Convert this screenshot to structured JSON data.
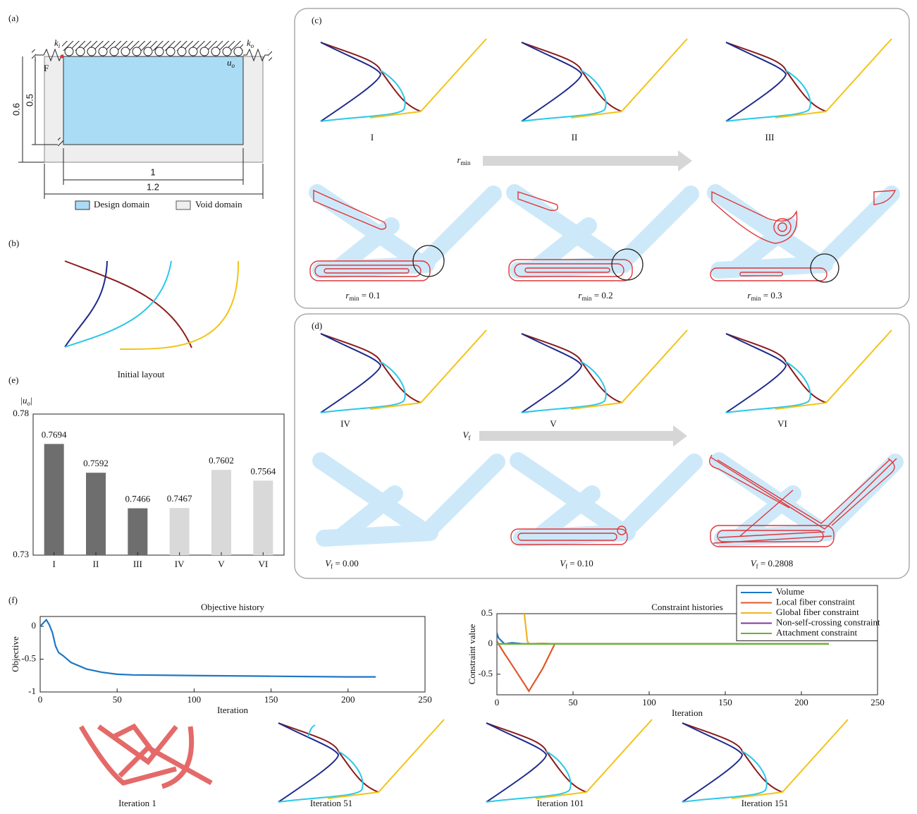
{
  "panel_a": {
    "label": "(a)",
    "force": "F",
    "ki": {
      "base": "k",
      "sub": "i"
    },
    "ko": {
      "base": "k",
      "sub": "o"
    },
    "uo": {
      "base": "u",
      "sub": "o"
    },
    "dims": [
      "0.6",
      "0.5",
      "1",
      "1.2"
    ],
    "legend": [
      "Design domain",
      "Void domain"
    ]
  },
  "panel_b": {
    "label": "(b)",
    "caption": "Initial layout"
  },
  "panel_c": {
    "label": "(c)",
    "captions": [
      "I",
      "II",
      "III"
    ],
    "arrow": {
      "base": "r",
      "sub": "min"
    },
    "settings": [
      {
        "base": "r",
        "sub": "min",
        "rest": " = 0.1"
      },
      {
        "base": "r",
        "sub": "min",
        "rest": " = 0.2"
      },
      {
        "base": "r",
        "sub": "min",
        "rest": " = 0.3"
      }
    ]
  },
  "panel_d": {
    "label": "(d)",
    "captions": [
      "IV",
      "V",
      "VI"
    ],
    "arrow": {
      "base": "V",
      "sub": "f"
    },
    "settings": [
      {
        "base": "V",
        "sub": "f",
        "rest": " = 0.00"
      },
      {
        "base": "V",
        "sub": "f",
        "rest": " = 0.10"
      },
      {
        "base": "V",
        "sub": "f",
        "rest": " = 0.2808"
      }
    ]
  },
  "panel_e": {
    "label": "(e)"
  },
  "panel_f": {
    "label": "(f)",
    "captions": [
      "Iteration 1",
      "Iteration 51",
      "Iteration 101",
      "Iteration 151"
    ]
  },
  "chart_data": [
    {
      "type": "bar",
      "ylabel": {
        "base": "|u",
        "sub": "o",
        "rest": "|"
      },
      "categories": [
        "I",
        "II",
        "III",
        "IV",
        "V",
        "VI"
      ],
      "values": [
        0.7694,
        0.7592,
        0.7466,
        0.7467,
        0.7602,
        0.7564
      ],
      "colors": [
        "#6e6e6e",
        "#6e6e6e",
        "#6e6e6e",
        "#d9d9d9",
        "#d9d9d9",
        "#d9d9d9"
      ],
      "ylim": [
        0.73,
        0.78
      ],
      "yticks": [
        0.73,
        0.78
      ]
    },
    {
      "type": "line",
      "title": "Objective history",
      "xlabel": "Iteration",
      "ylabel": "Objective",
      "x": [
        0,
        2,
        4,
        6,
        8,
        10,
        12,
        15,
        20,
        30,
        40,
        50,
        60,
        100,
        150,
        200,
        218
      ],
      "series": [
        {
          "color": "#1f77c4",
          "values": [
            0,
            0.05,
            0.1,
            0.02,
            -0.1,
            -0.3,
            -0.4,
            -0.45,
            -0.55,
            -0.65,
            -0.7,
            -0.73,
            -0.74,
            -0.75,
            -0.76,
            -0.77,
            -0.77
          ]
        }
      ],
      "xlim": [
        0,
        250
      ],
      "xticks": [
        0,
        50,
        100,
        150,
        200,
        250
      ],
      "ylim": [
        -1,
        0.15
      ],
      "yticks": [
        -1,
        -0.5,
        0
      ]
    },
    {
      "type": "line",
      "title": "Constraint histories",
      "xlabel": "Iteration",
      "ylabel": "Constraint value",
      "legend": "upper right",
      "x": [
        0,
        1,
        5,
        10,
        18,
        20,
        21,
        30,
        38,
        40,
        100,
        150,
        218
      ],
      "series": [
        {
          "name": "Volume",
          "color": "#1f77c4",
          "values": [
            0.18,
            0.1,
            0,
            0.02,
            0,
            0,
            0,
            0,
            0,
            0,
            0,
            0,
            0
          ]
        },
        {
          "name": "Local fiber constraint",
          "color": "#e2572a",
          "values": [
            0.05,
            0,
            -0.16,
            -0.35,
            -0.66,
            -0.74,
            -0.78,
            -0.41,
            0,
            0,
            0,
            0,
            0
          ]
        },
        {
          "name": "Global fiber constraint",
          "color": "#f0b323",
          "values": [
            null,
            null,
            null,
            null,
            0.5,
            0.05,
            0,
            0.01,
            0,
            0,
            0,
            0,
            0
          ]
        },
        {
          "name": "Non-self-crossing constraint",
          "color": "#7e3a97",
          "values": [
            0,
            0,
            0,
            0,
            0,
            0,
            0,
            0,
            0,
            0,
            0,
            0,
            0
          ]
        },
        {
          "name": "Attachment constraint",
          "color": "#6ab33a",
          "values": [
            0.02,
            0,
            0,
            0,
            0,
            0,
            0,
            0,
            0,
            0,
            0,
            0,
            0
          ]
        }
      ],
      "xlim": [
        0,
        250
      ],
      "xticks": [
        0,
        50,
        100,
        150,
        200,
        250
      ],
      "ylim": [
        -0.84,
        0.5
      ],
      "yticks": [
        -0.5,
        0,
        0.5
      ]
    }
  ]
}
